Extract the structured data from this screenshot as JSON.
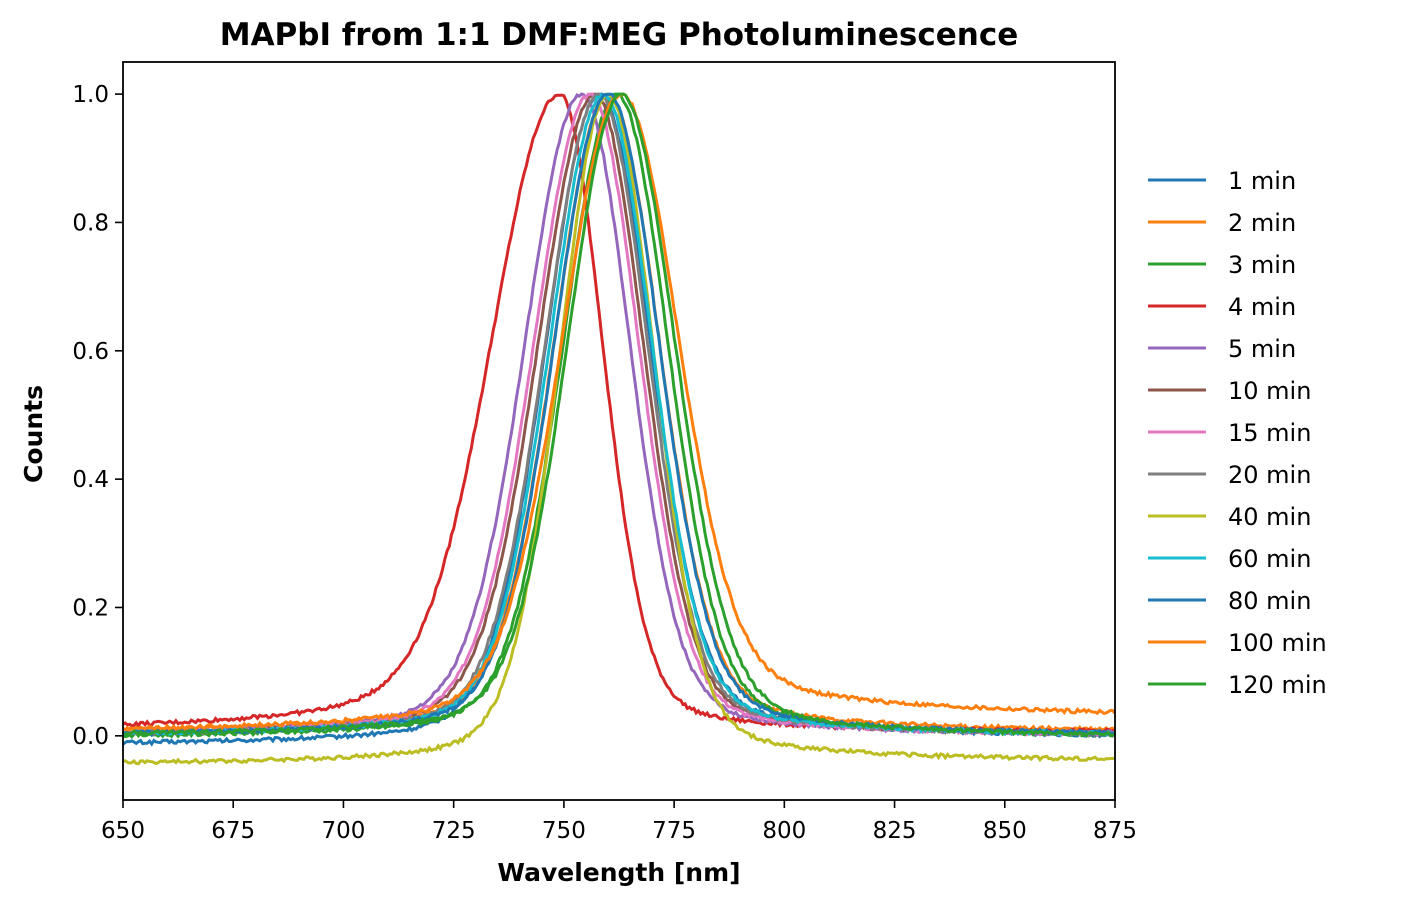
{
  "chart_data": {
    "type": "line",
    "title": "MAPbI from 1:1 DMF:MEG Photoluminescence",
    "xlabel": "Wavelength [nm]",
    "ylabel": "Counts",
    "xlim": [
      650,
      875
    ],
    "ylim": [
      -0.1,
      1.05
    ],
    "xticks": [
      650,
      675,
      700,
      725,
      750,
      775,
      800,
      825,
      850,
      875
    ],
    "yticks": [
      0.0,
      0.2,
      0.4,
      0.6,
      0.8,
      1.0
    ],
    "ytick_labels": [
      "0.0",
      "0.2",
      "0.4",
      "0.6",
      "0.8",
      "1.0"
    ],
    "grid": false,
    "legend_position": "right, outside plot",
    "series": [
      {
        "name": "1 min",
        "color": "#1f77b4",
        "peak": 758,
        "wl": 20,
        "wr": 19,
        "bl": -0.015,
        "br": -0.003,
        "tl": 0.015,
        "tr": 0.05
      },
      {
        "name": "2 min",
        "color": "#ff7f0e",
        "peak": 760,
        "wl": 20,
        "wr": 19,
        "bl": 0.005,
        "br": 0.005,
        "tl": 0.03,
        "tr": 0.05
      },
      {
        "name": "3 min",
        "color": "#2ca02c",
        "peak": 762,
        "wl": 20,
        "wr": 19,
        "bl": -0.003,
        "br": -0.003,
        "tl": 0.015,
        "tr": 0.05
      },
      {
        "name": "4 min",
        "color": "#d62728",
        "peak": 749,
        "wl": 25,
        "wr": 16,
        "bl": 0.005,
        "br": 0.005,
        "tl": 0.12,
        "tr": 0.02
      },
      {
        "name": "5 min",
        "color": "#9467bd",
        "peak": 754,
        "wl": 21,
        "wr": 18,
        "bl": 0.0,
        "br": 0.0,
        "tl": 0.03,
        "tr": 0.03
      },
      {
        "name": "10 min",
        "color": "#8c564b",
        "peak": 757,
        "wl": 21,
        "wr": 18,
        "bl": 0.0,
        "br": 0.0,
        "tl": 0.025,
        "tr": 0.04
      },
      {
        "name": "15 min",
        "color": "#e377c2",
        "peak": 756,
        "wl": 21,
        "wr": 18,
        "bl": 0.0,
        "br": 0.0,
        "tl": 0.025,
        "tr": 0.03
      },
      {
        "name": "20 min",
        "color": "#7f7f7f",
        "peak": 758,
        "wl": 20,
        "wr": 18,
        "bl": 0.0,
        "br": 0.0,
        "tl": 0.02,
        "tr": 0.04
      },
      {
        "name": "40 min",
        "color": "#bcbd22",
        "peak": 760,
        "wl": 18,
        "wr": 17,
        "bl": -0.045,
        "br": -0.04,
        "tl": 0.015,
        "tr": 0.04
      },
      {
        "name": "60 min",
        "color": "#17becf",
        "peak": 759,
        "wl": 20,
        "wr": 18,
        "bl": 0.0,
        "br": 0.0,
        "tl": 0.02,
        "tr": 0.04
      },
      {
        "name": "80 min",
        "color": "#1f77b4",
        "peak": 760,
        "wl": 20,
        "wr": 19,
        "bl": 0.0,
        "br": 0.0,
        "tl": 0.02,
        "tr": 0.05
      },
      {
        "name": "100 min",
        "color": "#ff7f0e",
        "peak": 763,
        "wl": 22,
        "wr": 21,
        "bl": 0.005,
        "br": 0.03,
        "tl": 0.06,
        "tr": 0.1
      },
      {
        "name": "120 min",
        "color": "#2ca02c",
        "peak": 763,
        "wl": 20,
        "wr": 20,
        "bl": 0.0,
        "br": -0.003,
        "tl": 0.02,
        "tr": 0.05
      }
    ]
  }
}
